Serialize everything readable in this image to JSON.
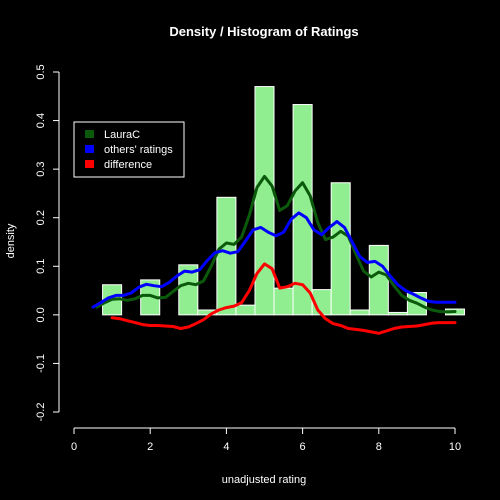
{
  "chart_data": {
    "type": "bar",
    "title": "Density / Histogram of Ratings",
    "xlabel": "unadjusted rating",
    "ylabel": "density",
    "xlim": [
      0,
      10
    ],
    "ylim": [
      -0.2,
      0.5
    ],
    "x_ticks": [
      "0",
      "2",
      "4",
      "6",
      "8",
      "10"
    ],
    "y_ticks": [
      "-0.2",
      "-0.1",
      "0.0",
      "0.1",
      "0.2",
      "0.3",
      "0.4",
      "0.5"
    ],
    "grid": false,
    "legend_placement": "top-left",
    "colors": {
      "background": "#000000",
      "bars": "#90ee90",
      "bar_border": "#ffffff",
      "axis": "#ffffff",
      "text": "#ffffff"
    },
    "histogram": [
      {
        "x0": 0.75,
        "x1": 1.25,
        "value": 0.062
      },
      {
        "x0": 1.25,
        "x1": 1.75,
        "value": 0.0
      },
      {
        "x0": 1.75,
        "x1": 2.25,
        "value": 0.072
      },
      {
        "x0": 2.25,
        "x1": 2.75,
        "value": 0.0
      },
      {
        "x0": 2.75,
        "x1": 3.25,
        "value": 0.103
      },
      {
        "x0": 3.25,
        "x1": 3.75,
        "value": 0.01
      },
      {
        "x0": 3.75,
        "x1": 4.25,
        "value": 0.242
      },
      {
        "x0": 4.25,
        "x1": 4.75,
        "value": 0.02
      },
      {
        "x0": 4.75,
        "x1": 5.25,
        "value": 0.47
      },
      {
        "x0": 5.25,
        "x1": 5.75,
        "value": 0.055
      },
      {
        "x0": 5.75,
        "x1": 6.25,
        "value": 0.433
      },
      {
        "x0": 6.25,
        "x1": 6.75,
        "value": 0.052
      },
      {
        "x0": 6.75,
        "x1": 7.25,
        "value": 0.272
      },
      {
        "x0": 7.25,
        "x1": 7.75,
        "value": 0.01
      },
      {
        "x0": 7.75,
        "x1": 8.25,
        "value": 0.143
      },
      {
        "x0": 8.25,
        "x1": 8.75,
        "value": 0.005
      },
      {
        "x0": 8.75,
        "x1": 9.25,
        "value": 0.046
      },
      {
        "x0": 9.25,
        "x1": 9.75,
        "value": 0.0
      },
      {
        "x0": 9.75,
        "x1": 10.25,
        "value": 0.012
      }
    ],
    "series": [
      {
        "name": "LauraC",
        "color": "#0b5a0b",
        "x": [
          0.6,
          0.8,
          1.0,
          1.2,
          1.4,
          1.6,
          1.8,
          2.0,
          2.2,
          2.4,
          2.6,
          2.8,
          3.0,
          3.2,
          3.4,
          3.6,
          3.8,
          4.0,
          4.2,
          4.4,
          4.6,
          4.8,
          5.0,
          5.2,
          5.4,
          5.6,
          5.8,
          6.0,
          6.2,
          6.4,
          6.6,
          6.8,
          7.0,
          7.2,
          7.4,
          7.6,
          7.8,
          8.0,
          8.2,
          8.4,
          8.6,
          8.8,
          9.0,
          9.2,
          9.4,
          9.6,
          9.8,
          10.0
        ],
        "y": [
          0.016,
          0.025,
          0.032,
          0.033,
          0.03,
          0.033,
          0.04,
          0.04,
          0.035,
          0.036,
          0.048,
          0.06,
          0.065,
          0.062,
          0.07,
          0.1,
          0.135,
          0.148,
          0.145,
          0.16,
          0.205,
          0.262,
          0.285,
          0.265,
          0.215,
          0.225,
          0.255,
          0.272,
          0.245,
          0.19,
          0.155,
          0.16,
          0.172,
          0.162,
          0.125,
          0.09,
          0.078,
          0.088,
          0.082,
          0.06,
          0.04,
          0.03,
          0.024,
          0.016,
          0.01,
          0.007,
          0.006,
          0.007
        ]
      },
      {
        "name": "others' ratings",
        "color": "#0000ff",
        "x": [
          0.5,
          0.7,
          0.9,
          1.1,
          1.3,
          1.5,
          1.7,
          1.9,
          2.1,
          2.3,
          2.5,
          2.7,
          2.9,
          3.1,
          3.3,
          3.5,
          3.7,
          3.9,
          4.1,
          4.3,
          4.5,
          4.7,
          4.9,
          5.1,
          5.3,
          5.5,
          5.7,
          5.9,
          6.1,
          6.3,
          6.5,
          6.7,
          6.9,
          7.1,
          7.3,
          7.5,
          7.7,
          7.9,
          8.1,
          8.3,
          8.5,
          8.7,
          8.9,
          9.1,
          9.3,
          9.5,
          9.7,
          9.9,
          10.0
        ],
        "y": [
          0.016,
          0.025,
          0.035,
          0.04,
          0.04,
          0.045,
          0.057,
          0.063,
          0.06,
          0.058,
          0.067,
          0.08,
          0.09,
          0.088,
          0.093,
          0.112,
          0.128,
          0.132,
          0.127,
          0.13,
          0.152,
          0.175,
          0.18,
          0.17,
          0.163,
          0.17,
          0.197,
          0.21,
          0.2,
          0.175,
          0.165,
          0.18,
          0.192,
          0.18,
          0.15,
          0.12,
          0.108,
          0.11,
          0.1,
          0.08,
          0.062,
          0.05,
          0.043,
          0.035,
          0.028,
          0.026,
          0.026,
          0.026,
          0.026
        ]
      },
      {
        "name": "difference",
        "color": "#ff0000",
        "x": [
          1.0,
          1.2,
          1.4,
          1.6,
          1.8,
          2.0,
          2.2,
          2.4,
          2.6,
          2.8,
          3.0,
          3.2,
          3.4,
          3.6,
          3.8,
          4.0,
          4.2,
          4.4,
          4.6,
          4.8,
          5.0,
          5.2,
          5.4,
          5.6,
          5.8,
          6.0,
          6.2,
          6.4,
          6.6,
          6.8,
          7.0,
          7.2,
          7.4,
          7.6,
          7.8,
          8.0,
          8.2,
          8.4,
          8.6,
          8.8,
          9.0,
          9.2,
          9.4,
          9.6,
          9.8,
          10.0
        ],
        "y": [
          -0.006,
          -0.008,
          -0.012,
          -0.016,
          -0.02,
          -0.022,
          -0.022,
          -0.023,
          -0.024,
          -0.028,
          -0.025,
          -0.018,
          -0.01,
          0.002,
          0.01,
          0.015,
          0.018,
          0.025,
          0.05,
          0.085,
          0.105,
          0.095,
          0.055,
          0.058,
          0.065,
          0.062,
          0.045,
          0.01,
          -0.008,
          -0.018,
          -0.022,
          -0.028,
          -0.03,
          -0.032,
          -0.035,
          -0.038,
          -0.033,
          -0.028,
          -0.025,
          -0.024,
          -0.023,
          -0.02,
          -0.017,
          -0.016,
          -0.016,
          -0.016
        ]
      }
    ]
  }
}
